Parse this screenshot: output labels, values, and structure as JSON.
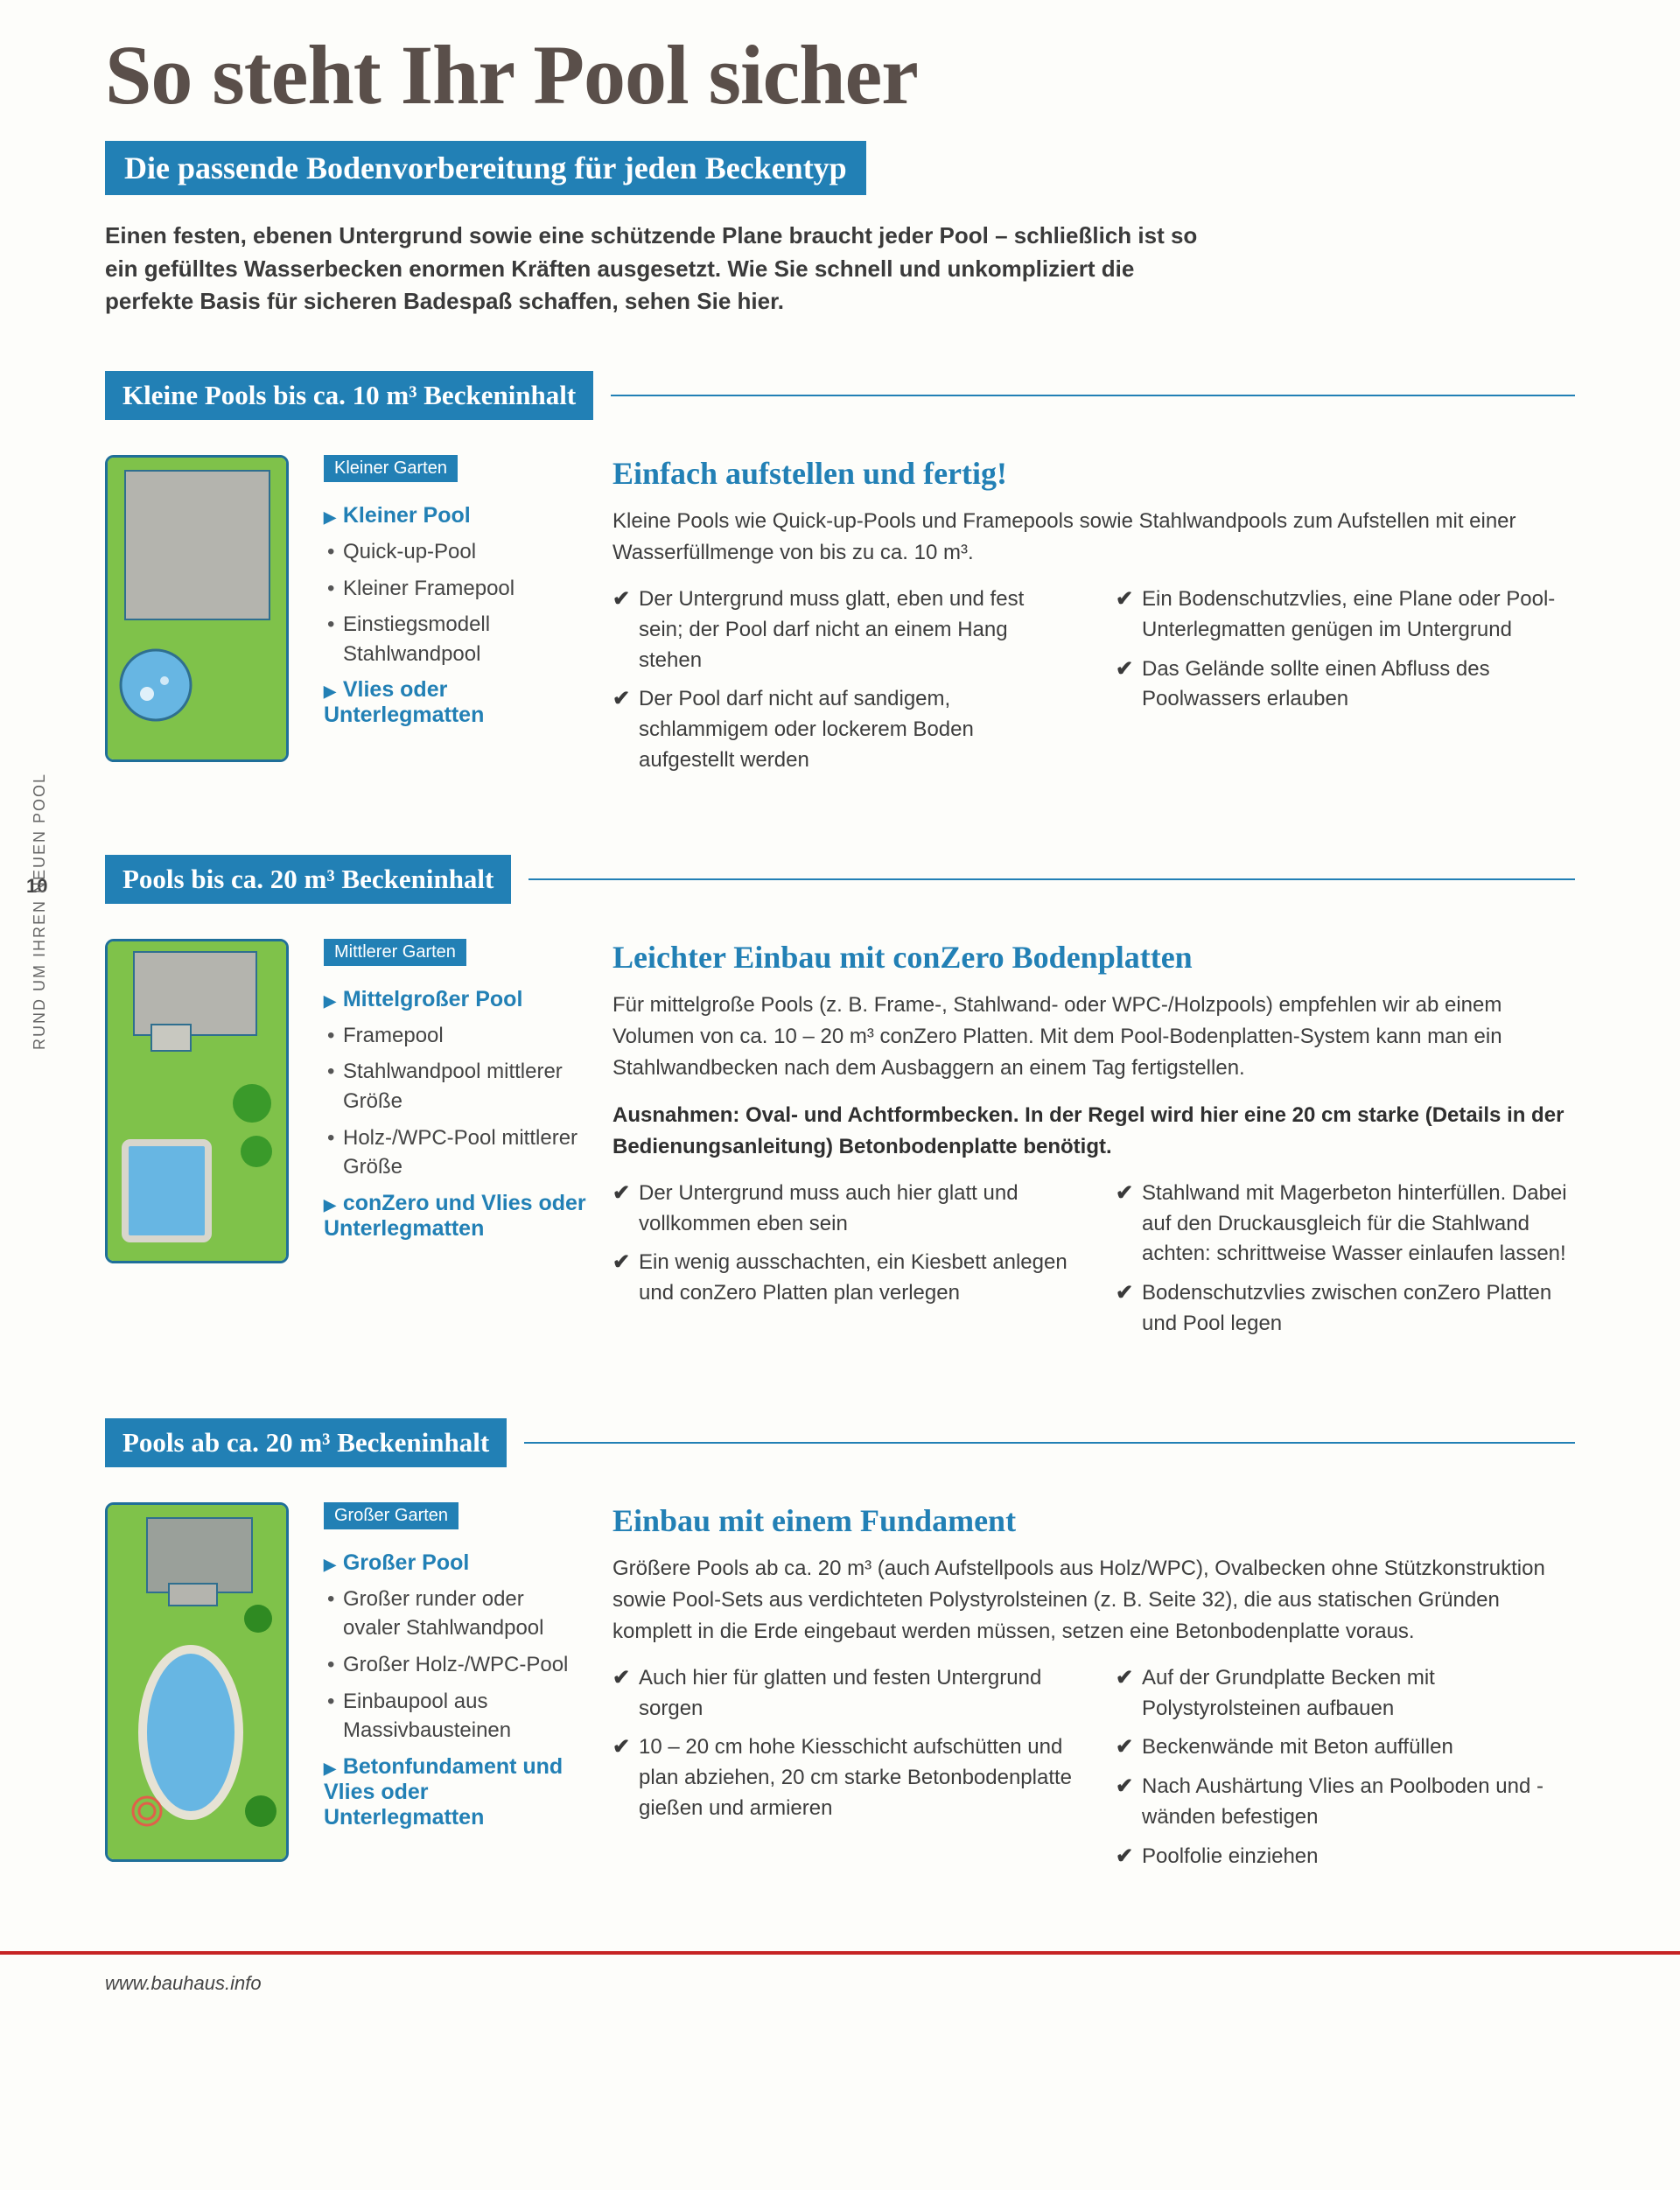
{
  "colors": {
    "accent_blue": "#2280b5",
    "text_brown": "#5a4f4a",
    "body_text": "#3d3d3d",
    "grass_green": "#7fc24a",
    "pool_blue": "#67b6e3",
    "frame_blue": "#1f6f99",
    "footer_red": "#c62424",
    "house_grey": "#b4b4ae"
  },
  "page_number": "10",
  "side_label": "RUND UM IHREN NEUEN POOL",
  "main_title": "So steht Ihr Pool sicher",
  "subtitle": "Die passende Bodenvorbereitung für jeden Beckentyp",
  "intro": "Einen festen, ebenen Untergrund sowie eine schützende Plane braucht jeder Pool – schließlich ist so ein gefülltes Wasserbecken enormen Kräften ausgesetzt. Wie Sie schnell und unkompliziert die perfekte Basis für sicheren Badespaß schaffen, sehen Sie hier.",
  "sections": [
    {
      "band": "Kleine Pools bis ca. 10 m³ Beckeninhalt",
      "tag": "Kleiner Garten",
      "illus_height": 340,
      "list_headings": [
        "Kleiner Pool",
        "Vlies oder Unterlegmatten"
      ],
      "bullets": [
        "Quick-up-Pool",
        "Kleiner Framepool",
        "Einstiegsmodell Stahlwandpool"
      ],
      "text_title": "Einfach aufstellen und fertig!",
      "lead": "Kleine Pools wie Quick-up-Pools und Framepools sowie Stahlwandpools zum Aufstellen mit einer Wasserfüllmenge von bis zu ca. 10 m³.",
      "checks_left": [
        "Der Untergrund muss glatt, eben und fest sein; der Pool darf nicht an einem Hang stehen",
        "Der Pool darf nicht auf sandigem, schlammigem oder lockerem Boden aufgestellt werden"
      ],
      "checks_right": [
        "Ein Bodenschutzvlies, eine Plane oder Pool-Unterlegmatten genügen im Untergrund",
        "Das Gelände sollte einen Abfluss des Poolwassers erlauben"
      ]
    },
    {
      "band": "Pools bis ca. 20 m³ Beckeninhalt",
      "tag": "Mittlerer Garten",
      "illus_height": 360,
      "list_headings": [
        "Mittelgroßer Pool",
        "conZero und Vlies oder Unterlegmatten"
      ],
      "bullets": [
        "Framepool",
        "Stahlwandpool mittlerer Größe",
        "Holz-/WPC-Pool mittlerer Größe"
      ],
      "text_title": "Leichter Einbau mit conZero Bodenplatten",
      "lead": "Für mittelgroße Pools (z. B. Frame-, Stahlwand- oder WPC-/Holzpools) empfehlen wir ab einem Volumen von ca. 10 – 20 m³ conZero Platten. Mit dem Pool-Bodenplatten-System kann man ein Stahlwandbecken nach dem Ausbaggern an einem Tag fertigstellen.",
      "bold": "Ausnahmen: Oval- und Achtformbecken. In der Regel wird hier eine 20 cm starke (Details in der Bedienungsanleitung) Betonbodenplatte benötigt.",
      "checks_left": [
        "Der Untergrund muss auch hier glatt und vollkommen eben sein",
        "Ein wenig ausschachten, ein Kiesbett anlegen und conZero Platten plan verlegen"
      ],
      "checks_right": [
        "Stahlwand mit Magerbeton hinterfüllen. Dabei auf den Druckausgleich für die Stahlwand achten: schrittweise Wasser einlaufen lassen!",
        "Bodenschutzvlies zwischen conZero Platten und Pool legen"
      ]
    },
    {
      "band": "Pools ab ca. 20 m³ Beckeninhalt",
      "tag": "Großer Garten",
      "illus_height": 400,
      "list_headings": [
        "Großer Pool",
        "Betonfundament und Vlies oder Unterlegmatten"
      ],
      "bullets": [
        "Großer runder oder ovaler Stahlwandpool",
        "Großer Holz-/WPC-Pool",
        "Einbaupool aus Massivbausteinen"
      ],
      "text_title": "Einbau mit einem Fundament",
      "lead": "Größere Pools ab ca. 20 m³ (auch Aufstellpools aus Holz/WPC), Ovalbecken ohne Stützkonstruktion sowie Pool-Sets aus verdichteten Polystyrolsteinen (z. B. Seite 32), die aus statischen Gründen komplett in die Erde eingebaut werden müssen, setzen eine Betonbodenplatte voraus.",
      "checks_left": [
        "Auch hier für glatten und festen Untergrund sorgen",
        "10 – 20 cm hohe Kiesschicht aufschütten und plan abziehen, 20 cm starke Betonbodenplatte gießen und armieren"
      ],
      "checks_right": [
        "Auf der Grundplatte Becken mit Polystyrolsteinen aufbauen",
        "Beckenwände mit Beton auffüllen",
        "Nach Aushärtung Vlies an Poolboden und -wänden befestigen",
        "Poolfolie einziehen"
      ]
    }
  ],
  "footer_url": "www.bauhaus.info"
}
